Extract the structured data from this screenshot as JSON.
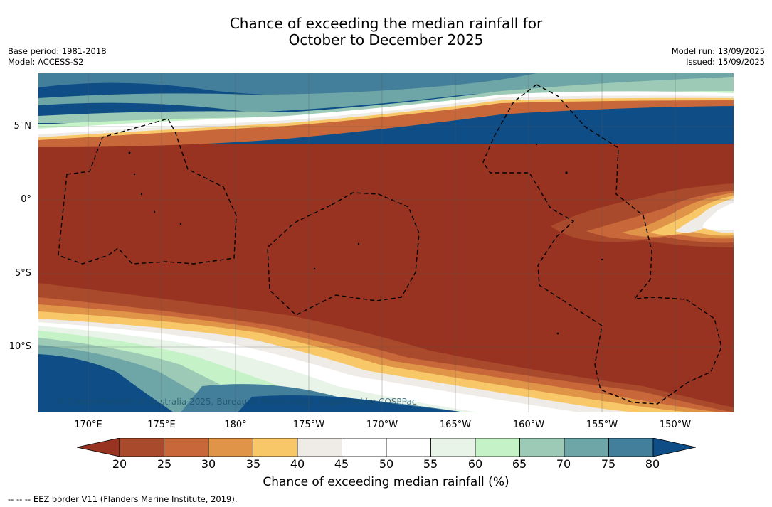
{
  "title_line1": "Chance of exceeding the median rainfall for",
  "title_line2": "October to December 2025",
  "meta_left": {
    "base_period": "Base period: 1981-2018",
    "model": "Model: ACCESS-S2"
  },
  "meta_right": {
    "model_run": "Model run: 13/09/2025",
    "issued": "Issued: 15/09/2025"
  },
  "lat_labels": [
    "5°N",
    "0°",
    "5°S",
    "10°S"
  ],
  "lon_labels": [
    "170°E",
    "175°E",
    "180°",
    "175°W",
    "170°W",
    "165°W",
    "160°W",
    "155°W",
    "150°W"
  ],
  "copyright": "© Commonwealth of Australia 2025, Bureau of Meteorology, supported by COSPPac",
  "colorbar": {
    "ticks": [
      "20",
      "25",
      "30",
      "35",
      "40",
      "45",
      "50",
      "55",
      "60",
      "65",
      "70",
      "75",
      "80"
    ],
    "colors": [
      "#973320",
      "#aa4a2c",
      "#c8683a",
      "#e09448",
      "#f8c868",
      "#efebe6",
      "#ffffff",
      "#ffffff",
      "#e9f4e9",
      "#c6f2c8",
      "#9ccab6",
      "#6ea5a6",
      "#437e9b",
      "#0e4d86"
    ],
    "title": "Chance of exceeding median rainfall (%)"
  },
  "eez_note": "--  --  -- EEZ border V11 (Flanders Marine Institute, 2019)."
}
